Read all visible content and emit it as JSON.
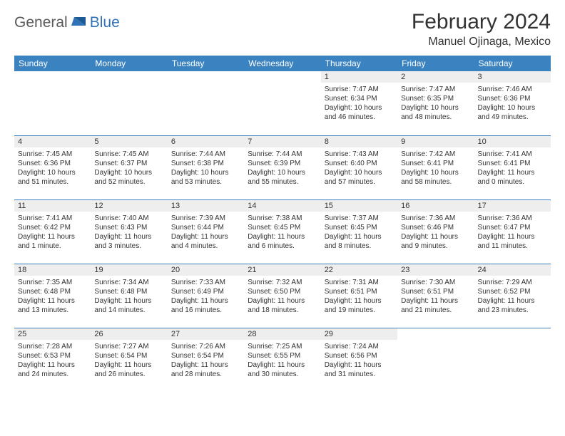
{
  "logo": {
    "text1": "General",
    "text2": "Blue"
  },
  "title": "February 2024",
  "location": "Manuel Ojinaga, Mexico",
  "colors": {
    "header_bg": "#3b83c0",
    "header_text": "#ffffff",
    "daynum_bg": "#eeeeee",
    "border": "#3b83c0",
    "text": "#333333",
    "logo_gray": "#5a5a5a",
    "logo_blue": "#2f72b8"
  },
  "weekdays": [
    "Sunday",
    "Monday",
    "Tuesday",
    "Wednesday",
    "Thursday",
    "Friday",
    "Saturday"
  ],
  "weeks": [
    [
      {
        "n": "",
        "sunrise": "",
        "sunset": "",
        "daylight": ""
      },
      {
        "n": "",
        "sunrise": "",
        "sunset": "",
        "daylight": ""
      },
      {
        "n": "",
        "sunrise": "",
        "sunset": "",
        "daylight": ""
      },
      {
        "n": "",
        "sunrise": "",
        "sunset": "",
        "daylight": ""
      },
      {
        "n": "1",
        "sunrise": "Sunrise: 7:47 AM",
        "sunset": "Sunset: 6:34 PM",
        "daylight": "Daylight: 10 hours and 46 minutes."
      },
      {
        "n": "2",
        "sunrise": "Sunrise: 7:47 AM",
        "sunset": "Sunset: 6:35 PM",
        "daylight": "Daylight: 10 hours and 48 minutes."
      },
      {
        "n": "3",
        "sunrise": "Sunrise: 7:46 AM",
        "sunset": "Sunset: 6:36 PM",
        "daylight": "Daylight: 10 hours and 49 minutes."
      }
    ],
    [
      {
        "n": "4",
        "sunrise": "Sunrise: 7:45 AM",
        "sunset": "Sunset: 6:36 PM",
        "daylight": "Daylight: 10 hours and 51 minutes."
      },
      {
        "n": "5",
        "sunrise": "Sunrise: 7:45 AM",
        "sunset": "Sunset: 6:37 PM",
        "daylight": "Daylight: 10 hours and 52 minutes."
      },
      {
        "n": "6",
        "sunrise": "Sunrise: 7:44 AM",
        "sunset": "Sunset: 6:38 PM",
        "daylight": "Daylight: 10 hours and 53 minutes."
      },
      {
        "n": "7",
        "sunrise": "Sunrise: 7:44 AM",
        "sunset": "Sunset: 6:39 PM",
        "daylight": "Daylight: 10 hours and 55 minutes."
      },
      {
        "n": "8",
        "sunrise": "Sunrise: 7:43 AM",
        "sunset": "Sunset: 6:40 PM",
        "daylight": "Daylight: 10 hours and 57 minutes."
      },
      {
        "n": "9",
        "sunrise": "Sunrise: 7:42 AM",
        "sunset": "Sunset: 6:41 PM",
        "daylight": "Daylight: 10 hours and 58 minutes."
      },
      {
        "n": "10",
        "sunrise": "Sunrise: 7:41 AM",
        "sunset": "Sunset: 6:41 PM",
        "daylight": "Daylight: 11 hours and 0 minutes."
      }
    ],
    [
      {
        "n": "11",
        "sunrise": "Sunrise: 7:41 AM",
        "sunset": "Sunset: 6:42 PM",
        "daylight": "Daylight: 11 hours and 1 minute."
      },
      {
        "n": "12",
        "sunrise": "Sunrise: 7:40 AM",
        "sunset": "Sunset: 6:43 PM",
        "daylight": "Daylight: 11 hours and 3 minutes."
      },
      {
        "n": "13",
        "sunrise": "Sunrise: 7:39 AM",
        "sunset": "Sunset: 6:44 PM",
        "daylight": "Daylight: 11 hours and 4 minutes."
      },
      {
        "n": "14",
        "sunrise": "Sunrise: 7:38 AM",
        "sunset": "Sunset: 6:45 PM",
        "daylight": "Daylight: 11 hours and 6 minutes."
      },
      {
        "n": "15",
        "sunrise": "Sunrise: 7:37 AM",
        "sunset": "Sunset: 6:45 PM",
        "daylight": "Daylight: 11 hours and 8 minutes."
      },
      {
        "n": "16",
        "sunrise": "Sunrise: 7:36 AM",
        "sunset": "Sunset: 6:46 PM",
        "daylight": "Daylight: 11 hours and 9 minutes."
      },
      {
        "n": "17",
        "sunrise": "Sunrise: 7:36 AM",
        "sunset": "Sunset: 6:47 PM",
        "daylight": "Daylight: 11 hours and 11 minutes."
      }
    ],
    [
      {
        "n": "18",
        "sunrise": "Sunrise: 7:35 AM",
        "sunset": "Sunset: 6:48 PM",
        "daylight": "Daylight: 11 hours and 13 minutes."
      },
      {
        "n": "19",
        "sunrise": "Sunrise: 7:34 AM",
        "sunset": "Sunset: 6:48 PM",
        "daylight": "Daylight: 11 hours and 14 minutes."
      },
      {
        "n": "20",
        "sunrise": "Sunrise: 7:33 AM",
        "sunset": "Sunset: 6:49 PM",
        "daylight": "Daylight: 11 hours and 16 minutes."
      },
      {
        "n": "21",
        "sunrise": "Sunrise: 7:32 AM",
        "sunset": "Sunset: 6:50 PM",
        "daylight": "Daylight: 11 hours and 18 minutes."
      },
      {
        "n": "22",
        "sunrise": "Sunrise: 7:31 AM",
        "sunset": "Sunset: 6:51 PM",
        "daylight": "Daylight: 11 hours and 19 minutes."
      },
      {
        "n": "23",
        "sunrise": "Sunrise: 7:30 AM",
        "sunset": "Sunset: 6:51 PM",
        "daylight": "Daylight: 11 hours and 21 minutes."
      },
      {
        "n": "24",
        "sunrise": "Sunrise: 7:29 AM",
        "sunset": "Sunset: 6:52 PM",
        "daylight": "Daylight: 11 hours and 23 minutes."
      }
    ],
    [
      {
        "n": "25",
        "sunrise": "Sunrise: 7:28 AM",
        "sunset": "Sunset: 6:53 PM",
        "daylight": "Daylight: 11 hours and 24 minutes."
      },
      {
        "n": "26",
        "sunrise": "Sunrise: 7:27 AM",
        "sunset": "Sunset: 6:54 PM",
        "daylight": "Daylight: 11 hours and 26 minutes."
      },
      {
        "n": "27",
        "sunrise": "Sunrise: 7:26 AM",
        "sunset": "Sunset: 6:54 PM",
        "daylight": "Daylight: 11 hours and 28 minutes."
      },
      {
        "n": "28",
        "sunrise": "Sunrise: 7:25 AM",
        "sunset": "Sunset: 6:55 PM",
        "daylight": "Daylight: 11 hours and 30 minutes."
      },
      {
        "n": "29",
        "sunrise": "Sunrise: 7:24 AM",
        "sunset": "Sunset: 6:56 PM",
        "daylight": "Daylight: 11 hours and 31 minutes."
      },
      {
        "n": "",
        "sunrise": "",
        "sunset": "",
        "daylight": ""
      },
      {
        "n": "",
        "sunrise": "",
        "sunset": "",
        "daylight": ""
      }
    ]
  ]
}
